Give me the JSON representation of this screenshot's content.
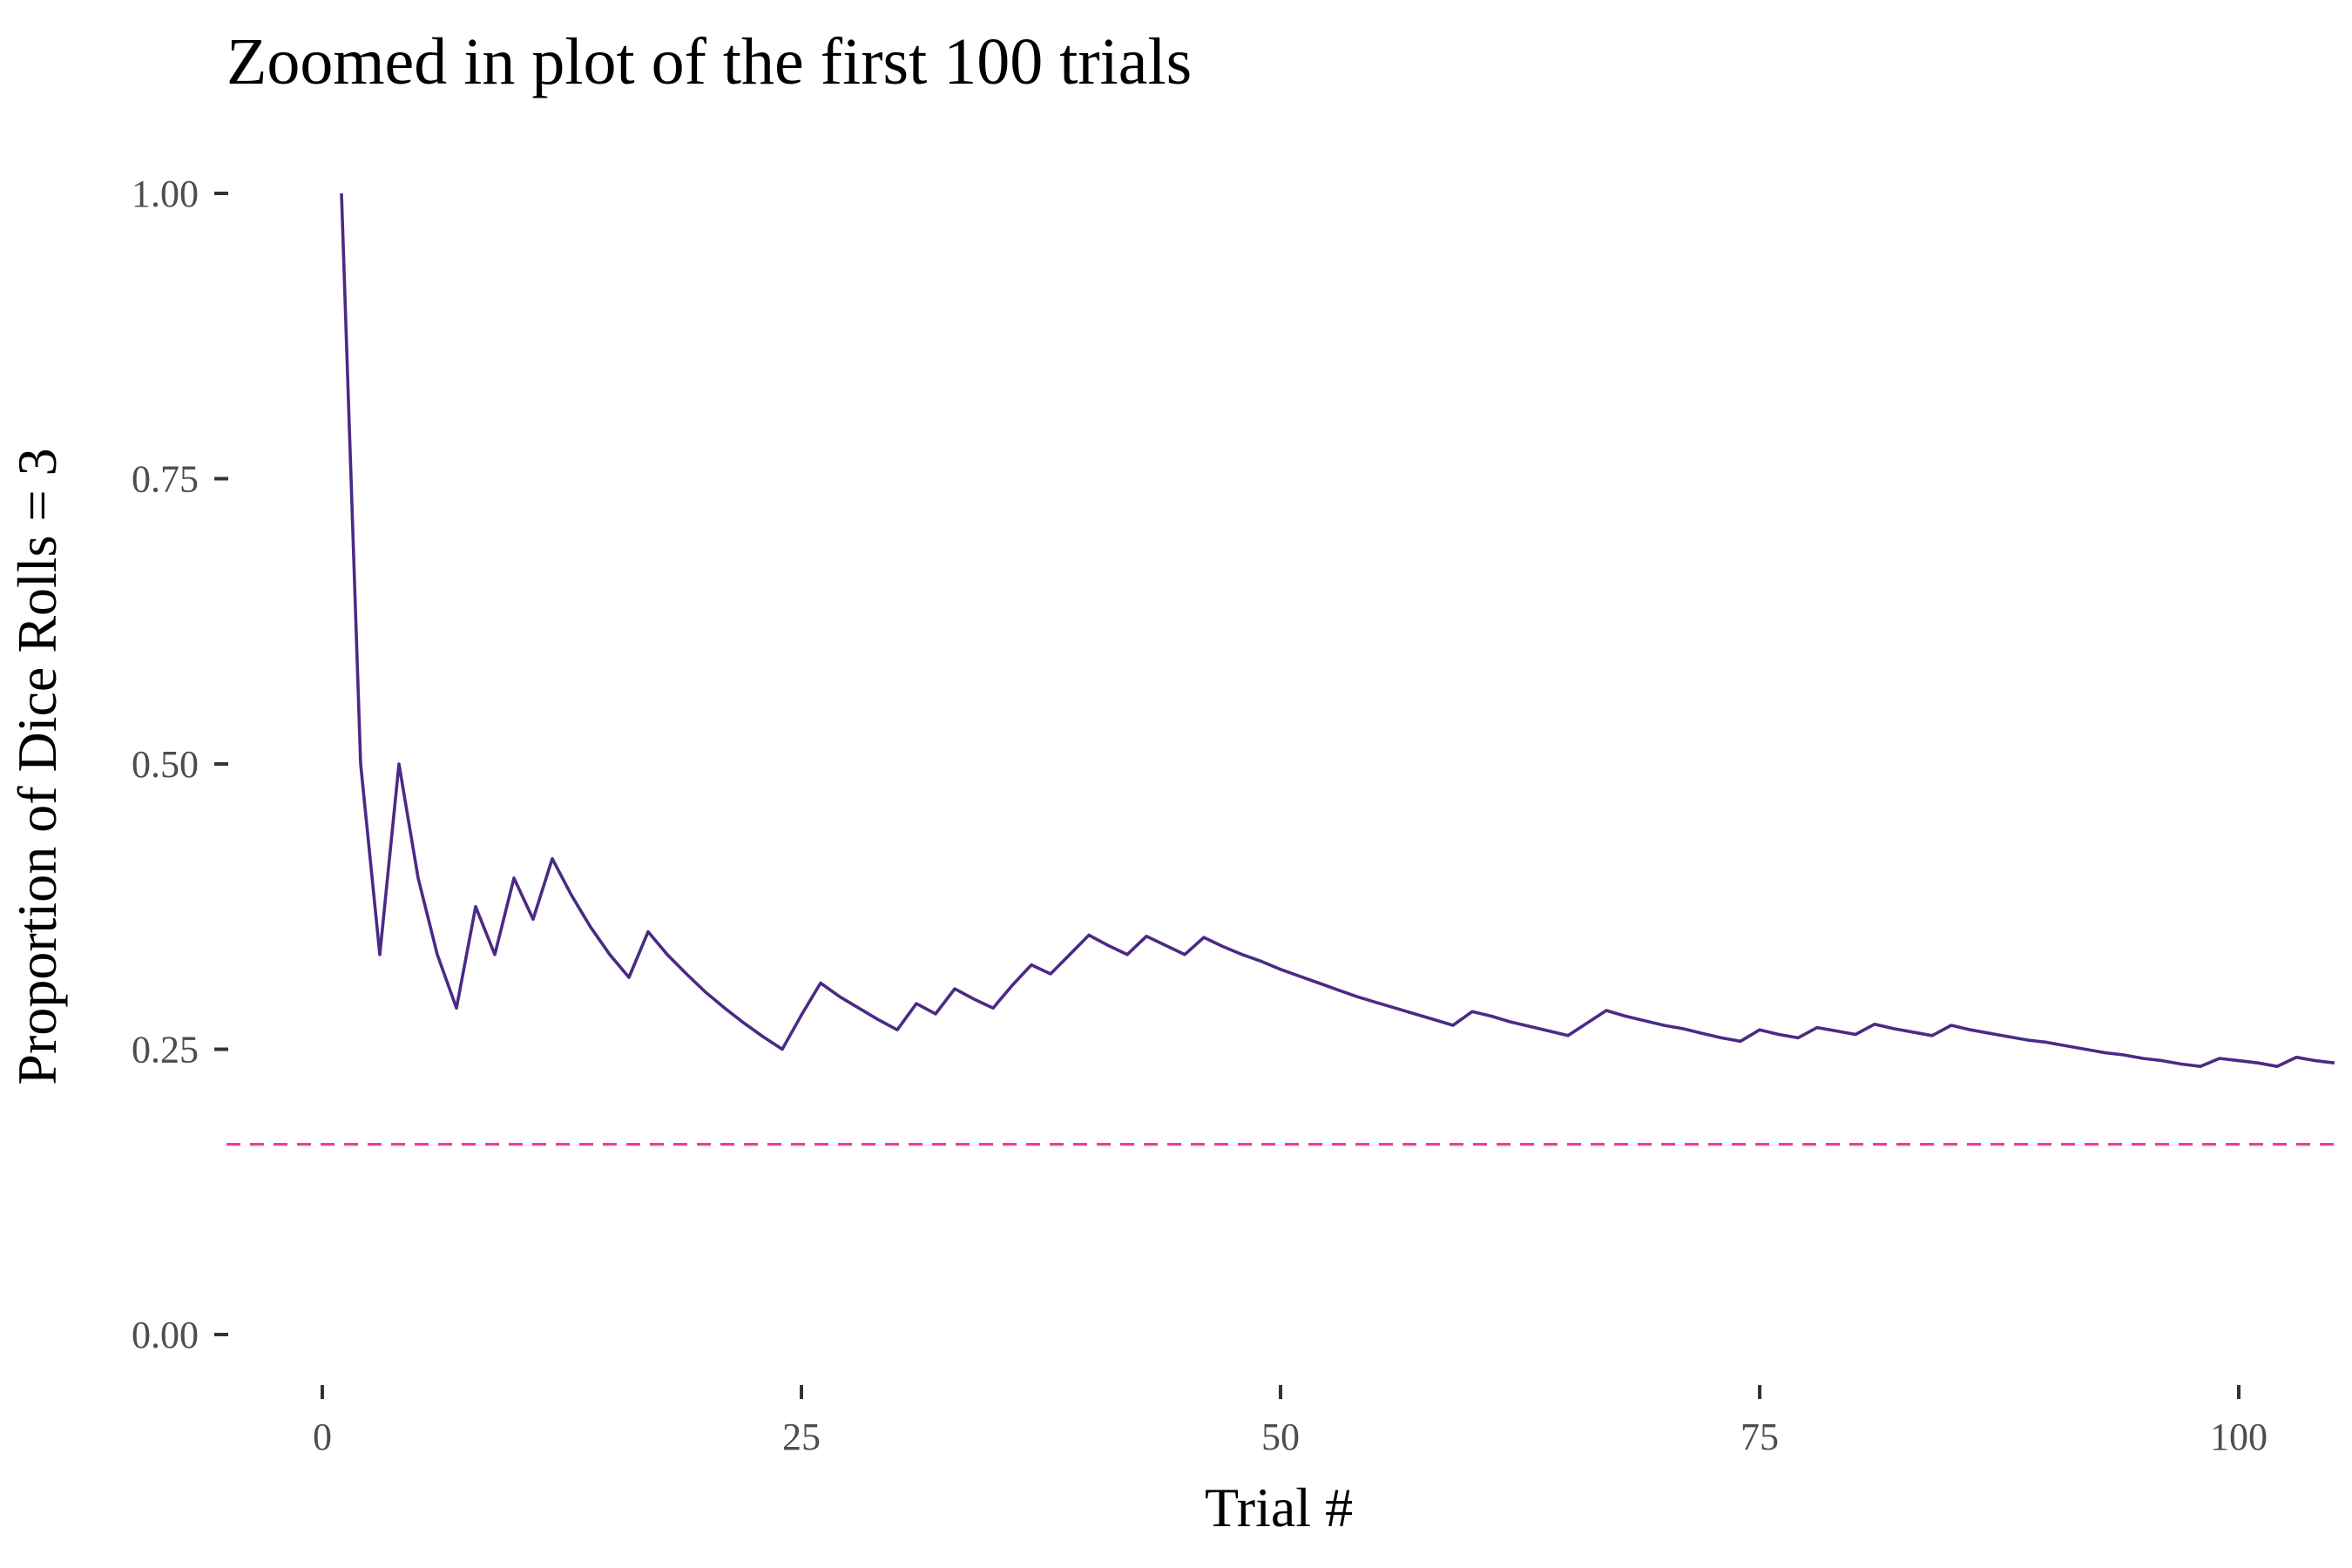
{
  "chart_data": {
    "type": "line",
    "title": "Zoomed in plot of the first 100 trials",
    "xlabel": "Trial #",
    "ylabel": "Proportion of Dice Rolls = 3",
    "xlim": [
      -5,
      105
    ],
    "ylim": [
      0,
      1.0
    ],
    "x_ticks": [
      0,
      25,
      50,
      75,
      100
    ],
    "x_tick_labels": [
      "0",
      "25",
      "50",
      "75",
      "100"
    ],
    "y_ticks": [
      0,
      0.25,
      0.5,
      0.75,
      1.0
    ],
    "y_tick_labels": [
      "0.00",
      "0.25",
      "0.50",
      "0.75",
      "1.00"
    ],
    "grid": false,
    "colors": {
      "line": "#4b2a85",
      "reference": "#f03ca0"
    },
    "reference_line": {
      "y": 0.1667,
      "style": "dashed"
    },
    "series": [
      {
        "x": [
          1,
          2,
          3,
          4,
          5,
          6,
          7,
          8,
          9,
          10,
          11,
          12,
          13,
          14,
          15,
          16,
          17,
          18,
          19,
          20,
          21,
          22,
          23,
          24,
          25,
          26,
          27,
          28,
          29,
          30,
          31,
          32,
          33,
          34,
          35,
          36,
          37,
          38,
          39,
          40,
          41,
          42,
          43,
          44,
          45,
          46,
          47,
          48,
          49,
          50,
          51,
          52,
          53,
          54,
          55,
          56,
          57,
          58,
          59,
          60,
          61,
          62,
          63,
          64,
          65,
          66,
          67,
          68,
          69,
          70,
          71,
          72,
          73,
          74,
          75,
          76,
          77,
          78,
          79,
          80,
          81,
          82,
          83,
          84,
          85,
          86,
          87,
          88,
          89,
          90,
          91,
          92,
          93,
          94,
          95,
          96,
          97,
          98,
          99,
          100,
          101,
          102,
          103,
          104,
          105
        ],
        "y": [
          1.0,
          0.5,
          0.333,
          0.5,
          0.4,
          0.333,
          0.286,
          0.375,
          0.333,
          0.4,
          0.364,
          0.417,
          0.385,
          0.357,
          0.333,
          0.313,
          0.353,
          0.333,
          0.316,
          0.3,
          0.286,
          0.273,
          0.261,
          0.25,
          0.28,
          0.308,
          0.296,
          0.286,
          0.276,
          0.267,
          0.29,
          0.281,
          0.303,
          0.294,
          0.286,
          0.306,
          0.324,
          0.316,
          0.333,
          0.35,
          0.341,
          0.333,
          0.349,
          0.341,
          0.333,
          0.348,
          0.34,
          0.333,
          0.327,
          0.32,
          0.314,
          0.308,
          0.302,
          0.296,
          0.291,
          0.286,
          0.281,
          0.276,
          0.271,
          0.283,
          0.279,
          0.274,
          0.27,
          0.266,
          0.262,
          0.273,
          0.284,
          0.279,
          0.275,
          0.271,
          0.268,
          0.264,
          0.26,
          0.257,
          0.267,
          0.263,
          0.26,
          0.269,
          0.266,
          0.263,
          0.272,
          0.268,
          0.265,
          0.262,
          0.271,
          0.267,
          0.264,
          0.261,
          0.258,
          0.256,
          0.253,
          0.25,
          0.247,
          0.245,
          0.242,
          0.24,
          0.237,
          0.235,
          0.242,
          0.24,
          0.238,
          0.235,
          0.243,
          0.24,
          0.238
        ]
      }
    ]
  }
}
